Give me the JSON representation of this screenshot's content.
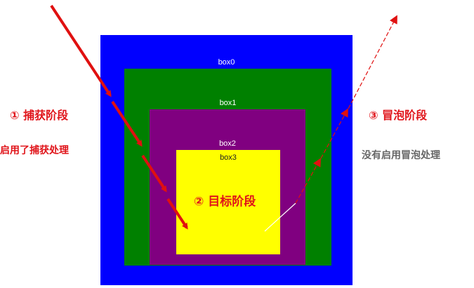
{
  "boxes": {
    "box0": "box0",
    "box1": "box1",
    "box2": "box2",
    "box3": "box3"
  },
  "annotations": {
    "capture_phase": "① 捕获阶段",
    "capture_note": "启用了捕获处理",
    "target_phase": "② 目标阶段",
    "bubble_phase": "③ 冒泡阶段",
    "bubble_note": "没有启用冒泡处理"
  },
  "colors": {
    "box0": "#0000ff",
    "box1": "#008000",
    "box2": "#800080",
    "box3": "#ffff00",
    "capture_arrow": "#e01010",
    "bubble_arrow": "#e01010",
    "annotation_red": "#e0141a",
    "annotation_gray": "#666666"
  }
}
